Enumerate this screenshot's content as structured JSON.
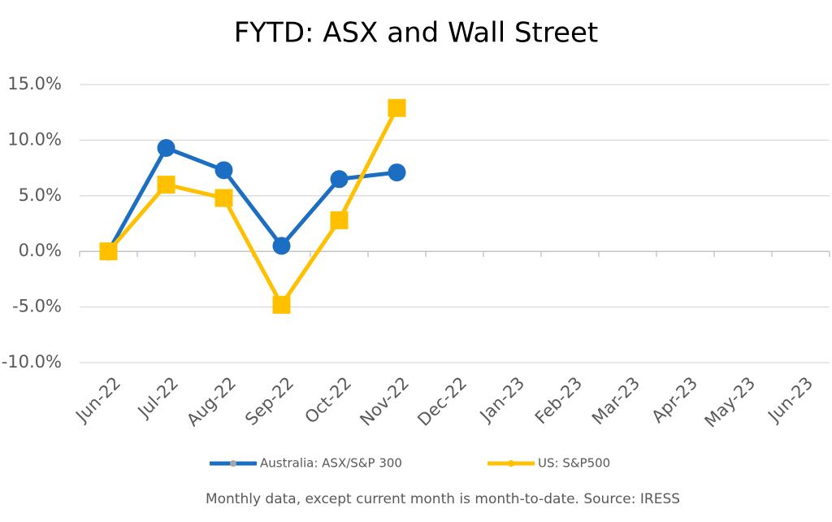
{
  "chart_data": {
    "type": "line",
    "title": "FYTD: ASX and Wall Street",
    "note": "Monthly data, except current month is month-to-date.  Source: IRESS",
    "categories": [
      "Jun-22",
      "Jul-22",
      "Aug-22",
      "Sep-22",
      "Oct-22",
      "Nov-22",
      "Dec-22",
      "Jan-23",
      "Feb-23",
      "Mar-23",
      "Apr-23",
      "May-23",
      "Jun-23"
    ],
    "series": [
      {
        "name": "Australia: ASX/S&P 300",
        "color": "#1b6ec2",
        "marker": "circle",
        "values": [
          0.0,
          9.3,
          7.3,
          0.5,
          6.5,
          7.1,
          null,
          null,
          null,
          null,
          null,
          null,
          null
        ]
      },
      {
        "name": "US: S&P500",
        "color": "#ffc000",
        "marker": "square",
        "values": [
          0.0,
          6.0,
          4.8,
          -4.8,
          2.8,
          12.9,
          null,
          null,
          null,
          null,
          null,
          null,
          null
        ]
      }
    ],
    "ylim": [
      -10,
      15
    ],
    "yticks": [
      {
        "value": -10,
        "label": "-10.0%"
      },
      {
        "value": -5,
        "label": "-5.0%"
      },
      {
        "value": 0,
        "label": "0.0%"
      },
      {
        "value": 5,
        "label": "5.0%"
      },
      {
        "value": 10,
        "label": "10.0%"
      },
      {
        "value": 15,
        "label": "15.0%"
      }
    ],
    "grid": true,
    "legend": "bottom"
  }
}
